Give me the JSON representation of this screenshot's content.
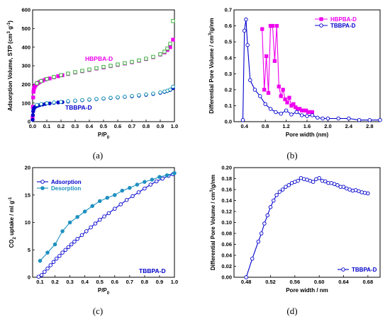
{
  "chart_data": [
    {
      "id": "a",
      "type": "scatter",
      "panel_label": "(a)",
      "xlabel": "P/P0",
      "ylabel": "Adsorption Volume, STP (cm3 g-1)",
      "xlim": [
        0,
        1.0
      ],
      "ylim": [
        0,
        600
      ],
      "xticks": [
        "0.0",
        "0.1",
        "0.2",
        "0.3",
        "0.4",
        "0.5",
        "0.6",
        "0.7",
        "0.8",
        "0.9",
        "1.0"
      ],
      "yticks": [
        "0",
        "100",
        "200",
        "300",
        "400",
        "500",
        "600"
      ],
      "annotations": [
        {
          "text": "HBPBA-D",
          "color": "#ee00ee"
        },
        {
          "text": "TBBPA-D",
          "color": "#0000cc"
        }
      ],
      "series": [
        {
          "name": "HBPBA-D",
          "color": "#ee00ee",
          "marker": "square",
          "filled": true,
          "x": [
            0.0,
            0.002,
            0.004,
            0.006,
            0.008,
            0.01,
            0.015,
            0.02,
            0.03,
            0.04,
            0.05,
            0.07,
            0.09,
            0.12,
            0.15,
            0.18,
            0.21,
            0.25,
            0.3,
            0.35,
            0.4,
            0.45,
            0.5,
            0.55,
            0.6,
            0.65,
            0.7,
            0.75,
            0.8,
            0.85,
            0.9,
            0.93,
            0.95,
            0.97,
            0.99
          ],
          "y": [
            20,
            80,
            130,
            160,
            172,
            180,
            188,
            195,
            202,
            208,
            213,
            220,
            226,
            232,
            238,
            244,
            249,
            256,
            264,
            271,
            278,
            285,
            291,
            298,
            305,
            312,
            319,
            327,
            336,
            346,
            360,
            372,
            385,
            400,
            440
          ]
        },
        {
          "name": "HBPBA-D desorption",
          "color": "#2fae2f",
          "marker": "square",
          "filled": false,
          "x": [
            0.99,
            0.97,
            0.95,
            0.93,
            0.9,
            0.85,
            0.8,
            0.75,
            0.7,
            0.65,
            0.6,
            0.55,
            0.5,
            0.45,
            0.4,
            0.35,
            0.3,
            0.25,
            0.2,
            0.15,
            0.1,
            0.06,
            0.03
          ],
          "y": [
            540,
            418,
            393,
            376,
            362,
            348,
            338,
            329,
            321,
            314,
            307,
            300,
            294,
            287,
            280,
            273,
            266,
            258,
            250,
            240,
            229,
            218,
            206
          ]
        },
        {
          "name": "TBBPA-D",
          "color": "#0000cc",
          "marker": "circle",
          "filled": true,
          "x": [
            0.0,
            0.002,
            0.004,
            0.006,
            0.008,
            0.01,
            0.015,
            0.02,
            0.03,
            0.04,
            0.05,
            0.07,
            0.09,
            0.12,
            0.15,
            0.18,
            0.21,
            0.25,
            0.3,
            0.35,
            0.4,
            0.45,
            0.5,
            0.55,
            0.6,
            0.65,
            0.7,
            0.75,
            0.8,
            0.85,
            0.9,
            0.93,
            0.95,
            0.97,
            0.99
          ],
          "y": [
            10,
            35,
            55,
            65,
            70,
            73,
            77,
            80,
            84,
            87,
            89,
            92,
            95,
            98,
            101,
            103,
            105,
            108,
            112,
            115,
            118,
            121,
            124,
            127,
            130,
            133,
            136,
            140,
            144,
            149,
            155,
            160,
            165,
            170,
            180
          ]
        },
        {
          "name": "TBBPA-D desorption",
          "color": "#008aa8",
          "marker": "circle",
          "filled": false,
          "x": [
            0.99,
            0.97,
            0.95,
            0.93,
            0.9,
            0.85,
            0.8,
            0.75,
            0.7,
            0.65,
            0.6,
            0.55,
            0.5,
            0.45,
            0.4,
            0.35,
            0.3,
            0.25,
            0.2,
            0.15,
            0.1,
            0.06,
            0.03
          ],
          "y": [
            188,
            172,
            166,
            162,
            157,
            151,
            146,
            142,
            138,
            134,
            131,
            128,
            125,
            122,
            119,
            116,
            113,
            110,
            106,
            103,
            99,
            95,
            90
          ]
        }
      ]
    },
    {
      "id": "b",
      "type": "line",
      "panel_label": "(b)",
      "xlabel": "Pore width (nm)",
      "ylabel": "Differential Pore Volume / cm3/g/nm",
      "xlim": [
        0.2,
        3.0
      ],
      "ylim": [
        0,
        0.7
      ],
      "xticks": [
        "0.4",
        "0.8",
        "1.2",
        "1.6",
        "2.0",
        "2.4",
        "2.8"
      ],
      "yticks": [
        "0.0",
        "0.1",
        "0.2",
        "0.3",
        "0.4",
        "0.5",
        "0.6",
        "0.7"
      ],
      "legend": "top-right",
      "series": [
        {
          "name": "HBPBA-D",
          "color": "#ee00ee",
          "marker": "square",
          "filled": true,
          "x": [
            0.74,
            0.78,
            0.82,
            0.86,
            0.9,
            0.94,
            0.98,
            1.02,
            1.06,
            1.1,
            1.14,
            1.18,
            1.22,
            1.26,
            1.3,
            1.34,
            1.38,
            1.42,
            1.46,
            1.5,
            1.54,
            1.58,
            1.62,
            1.66,
            1.7
          ],
          "y": [
            0.58,
            0.2,
            0.41,
            0.18,
            0.6,
            0.6,
            0.38,
            0.6,
            0.22,
            0.16,
            0.2,
            0.14,
            0.12,
            0.15,
            0.1,
            0.11,
            0.09,
            0.08,
            0.08,
            0.07,
            0.07,
            0.07,
            0.06,
            0.06,
            0.06
          ]
        },
        {
          "name": "TBBPA-D",
          "color": "#0000cc",
          "marker": "circle",
          "filled": false,
          "x": [
            0.37,
            0.4,
            0.43,
            0.46,
            0.51,
            0.6,
            0.7,
            0.8,
            0.9,
            1.0,
            1.1,
            1.2,
            1.3,
            1.4,
            1.5,
            1.6,
            1.7,
            1.8,
            1.9,
            2.0,
            2.2,
            2.4,
            2.6,
            2.8,
            3.0
          ],
          "y": [
            0.01,
            0.57,
            0.64,
            0.48,
            0.26,
            0.2,
            0.16,
            0.11,
            0.08,
            0.06,
            0.05,
            0.07,
            0.045,
            0.06,
            0.04,
            0.035,
            0.04,
            0.025,
            0.02,
            0.02,
            0.02,
            0.02,
            0.01,
            0.01,
            0.01
          ]
        }
      ]
    },
    {
      "id": "c",
      "type": "line",
      "panel_label": "(c)",
      "xlabel": "P/P0",
      "ylabel": "CO2 uptake / ml g-1",
      "xlim": [
        0.05,
        1.0
      ],
      "ylim": [
        0,
        20
      ],
      "xticks": [
        "0.1",
        "0.2",
        "0.3",
        "0.4",
        "0.5",
        "0.6",
        "0.7",
        "0.8",
        "0.9",
        "1.0"
      ],
      "yticks": [
        "0",
        "5",
        "10",
        "15",
        "20"
      ],
      "legend": "top-left",
      "annotations": [
        {
          "text": "TBBPA-D",
          "color": "#0000cc"
        }
      ],
      "series": [
        {
          "name": "Adsorption",
          "color": "#0000cc",
          "marker": "circle",
          "filled": false,
          "x": [
            0.09,
            0.11,
            0.13,
            0.15,
            0.17,
            0.19,
            0.21,
            0.23,
            0.25,
            0.27,
            0.29,
            0.31,
            0.33,
            0.35,
            0.38,
            0.41,
            0.44,
            0.47,
            0.5,
            0.53,
            0.56,
            0.6,
            0.64,
            0.68,
            0.72,
            0.76,
            0.8,
            0.84,
            0.88,
            0.92,
            0.96,
            0.99
          ],
          "y": [
            0.1,
            0.4,
            1.0,
            1.6,
            2.2,
            2.8,
            3.4,
            3.9,
            4.5,
            5.0,
            5.5,
            6.0,
            6.5,
            7.0,
            7.7,
            8.4,
            9.1,
            9.8,
            10.5,
            11.1,
            11.7,
            12.5,
            13.3,
            14.1,
            14.8,
            15.5,
            16.2,
            16.9,
            17.5,
            18.0,
            18.5,
            18.8
          ]
        },
        {
          "name": "Desorption",
          "color": "#1e90c0",
          "marker": "circle",
          "filled": true,
          "x": [
            0.1,
            0.15,
            0.2,
            0.25,
            0.3,
            0.35,
            0.4,
            0.45,
            0.5,
            0.55,
            0.6,
            0.65,
            0.7,
            0.75,
            0.8,
            0.85,
            0.9,
            0.95,
            1.0
          ],
          "y": [
            3.0,
            4.5,
            6.0,
            8.4,
            10.0,
            11.0,
            12.0,
            13.0,
            13.9,
            14.5,
            15.0,
            15.8,
            16.3,
            16.9,
            17.4,
            17.8,
            18.3,
            18.6,
            19.0
          ]
        }
      ]
    },
    {
      "id": "d",
      "type": "line",
      "panel_label": "(d)",
      "xlabel": "Pore width / nm",
      "ylabel": "Differential Pore Volume / cm3/g/nm",
      "xlim": [
        0.46,
        0.7
      ],
      "ylim": [
        0,
        0.2
      ],
      "xticks": [
        "0.48",
        "0.52",
        "0.56",
        "0.60",
        "0.64",
        "0.68"
      ],
      "yticks": [
        "0.00",
        "0.02",
        "0.04",
        "0.06",
        "0.08",
        "0.10",
        "0.12",
        "0.14",
        "0.16",
        "0.18",
        "0.20"
      ],
      "legend": "bottom-right",
      "series": [
        {
          "name": "TBBPA-D",
          "color": "#0000cc",
          "marker": "circle",
          "filled": false,
          "x": [
            0.48,
            0.49,
            0.5,
            0.505,
            0.51,
            0.515,
            0.52,
            0.525,
            0.53,
            0.535,
            0.54,
            0.545,
            0.55,
            0.555,
            0.56,
            0.565,
            0.57,
            0.575,
            0.58,
            0.585,
            0.59,
            0.595,
            0.6,
            0.605,
            0.61,
            0.615,
            0.62,
            0.625,
            0.63,
            0.635,
            0.64,
            0.645,
            0.65,
            0.655,
            0.66,
            0.665,
            0.67,
            0.675,
            0.68
          ],
          "y": [
            0.0,
            0.034,
            0.065,
            0.08,
            0.098,
            0.113,
            0.128,
            0.14,
            0.15,
            0.156,
            0.16,
            0.165,
            0.168,
            0.172,
            0.174,
            0.176,
            0.181,
            0.179,
            0.178,
            0.176,
            0.174,
            0.179,
            0.181,
            0.176,
            0.175,
            0.172,
            0.172,
            0.17,
            0.168,
            0.165,
            0.165,
            0.162,
            0.16,
            0.158,
            0.159,
            0.157,
            0.155,
            0.154,
            0.153
          ]
        }
      ]
    }
  ]
}
